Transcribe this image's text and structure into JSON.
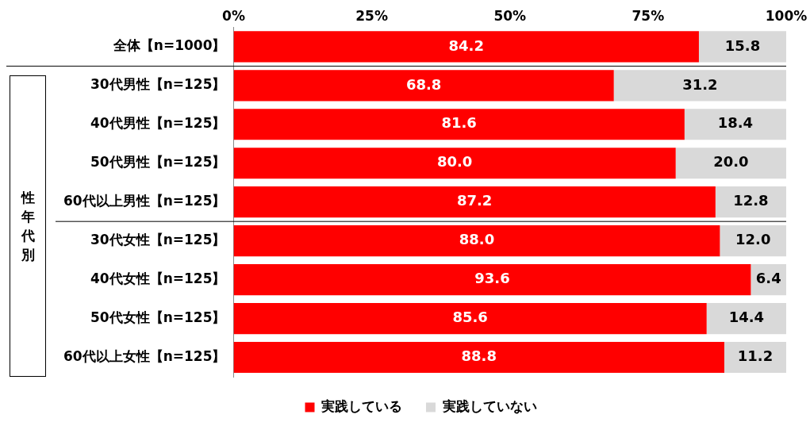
{
  "chart_data": {
    "type": "bar",
    "orientation": "horizontal",
    "stacked": true,
    "categories": [
      "全体【n=1000】",
      "30代男性【n=125】",
      "40代男性【n=125】",
      "50代男性【n=125】",
      "60代以上男性【n=125】",
      "30代女性【n=125】",
      "40代女性【n=125】",
      "50代女性【n=125】",
      "60代以上女性【n=125】"
    ],
    "series": [
      {
        "name": "実践している",
        "color": "#ff0000",
        "values": [
          84.2,
          68.8,
          81.6,
          80.0,
          87.2,
          88.0,
          93.6,
          85.6,
          88.8
        ],
        "value_labels": [
          "84.2",
          "68.8",
          "81.6",
          "80.0",
          "87.2",
          "88.0",
          "93.6",
          "85.6",
          "88.8"
        ]
      },
      {
        "name": "実践していない",
        "color": "#d9d9d9",
        "values": [
          15.8,
          31.2,
          18.4,
          20.0,
          12.8,
          12.0,
          6.4,
          14.4,
          11.2
        ],
        "value_labels": [
          "15.8",
          "31.2",
          "18.4",
          "20.0",
          "12.8",
          "12.0",
          "6.4",
          "14.4",
          "11.2"
        ]
      }
    ],
    "xlim": [
      0,
      100
    ],
    "xticks": [
      {
        "value": 0,
        "label": "0%"
      },
      {
        "value": 25,
        "label": "25%"
      },
      {
        "value": 50,
        "label": "50%"
      },
      {
        "value": 75,
        "label": "75%"
      },
      {
        "value": 100,
        "label": "100%"
      }
    ],
    "grid": false,
    "legend": "bottom",
    "annotations": [
      "性年代別"
    ]
  }
}
